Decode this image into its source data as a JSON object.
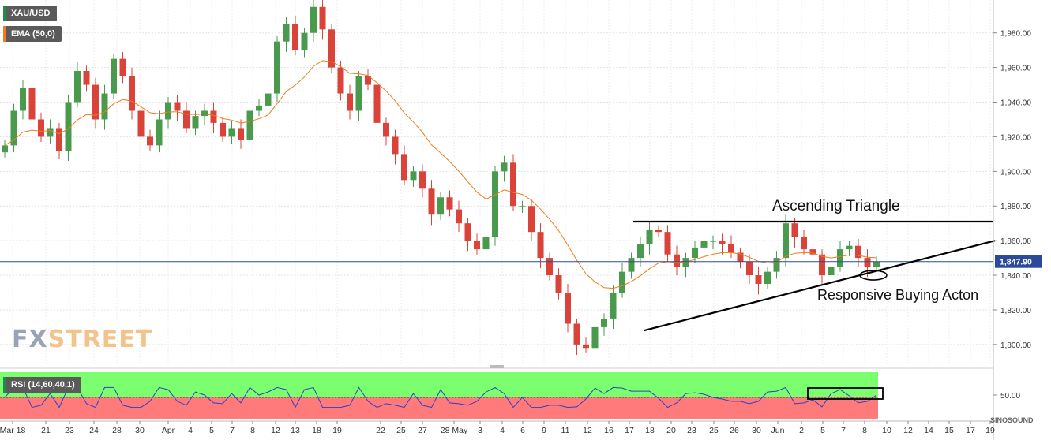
{
  "chart_data": {
    "type": "candlestick",
    "symbol": "XAU/USD",
    "indicator": "EMA (50,0)",
    "y_ticks": [
      "1,800.00",
      "1,820.00",
      "1,840.00",
      "1,860.00",
      "1,880.00",
      "1,900.00",
      "1,920.00",
      "1,940.00",
      "1,960.00",
      "1,980.00"
    ],
    "ylim": [
      1789,
      1999
    ],
    "current_price": "1,847.90",
    "current_value": 1847.9,
    "x_ticks": [
      "Mar 18",
      "21",
      "23",
      "24",
      "28",
      "30",
      "Apr",
      "4",
      "5",
      "7",
      "8",
      "12",
      "13",
      "18",
      "19",
      "22",
      "25",
      "27",
      "28 May",
      "3",
      "4",
      "6",
      "9",
      "11",
      "12",
      "16",
      "17",
      "18",
      "20",
      "23",
      "25",
      "26",
      "30",
      "Jun",
      "2",
      "5",
      "7",
      "8",
      "10",
      "12",
      "14",
      "15",
      "17",
      "19"
    ],
    "close_series": [
      1915,
      1935,
      1948,
      1930,
      1920,
      1925,
      1912,
      1940,
      1958,
      1950,
      1930,
      1945,
      1965,
      1955,
      1935,
      1920,
      1915,
      1930,
      1940,
      1935,
      1925,
      1932,
      1935,
      1928,
      1920,
      1925,
      1918,
      1935,
      1938,
      1945,
      1975,
      1985,
      1970,
      1980,
      1995,
      1982,
      1960,
      1945,
      1935,
      1955,
      1950,
      1928,
      1920,
      1910,
      1895,
      1900,
      1890,
      1875,
      1885,
      1878,
      1870,
      1860,
      1855,
      1862,
      1900,
      1905,
      1880,
      1880,
      1865,
      1850,
      1840,
      1830,
      1812,
      1800,
      1798,
      1810,
      1815,
      1830,
      1842,
      1850,
      1858,
      1866,
      1865,
      1852,
      1845,
      1850,
      1856,
      1860,
      1860,
      1858,
      1853,
      1848,
      1840,
      1835,
      1842,
      1850,
      1870,
      1862,
      1855,
      1852,
      1840,
      1845,
      1855,
      1857,
      1850,
      1845,
      1847.9
    ],
    "annotations": {
      "pattern": "Ascending Triangle",
      "signal": "Responsive Buying Acton",
      "resistance": 1871,
      "support_line": [
        [
          815,
          1808
        ],
        [
          1260,
          1860
        ]
      ]
    },
    "rsi": {
      "label": "RSI (14,60,40,1)",
      "tick": "50.00",
      "levels": [
        40,
        60
      ]
    },
    "x_labels_note": "",
    "brand": "FXSTREET",
    "watermark": "SINOSOUND"
  },
  "colors": {
    "up": "#4a9a4e",
    "down": "#d9433a",
    "ema": "#ee7d1a",
    "price_line": "#2b4a9a",
    "rsi_line": "#2a43c4",
    "rsi_overbought": "#7cff6e",
    "rsi_oversold": "#ff7a7a"
  }
}
